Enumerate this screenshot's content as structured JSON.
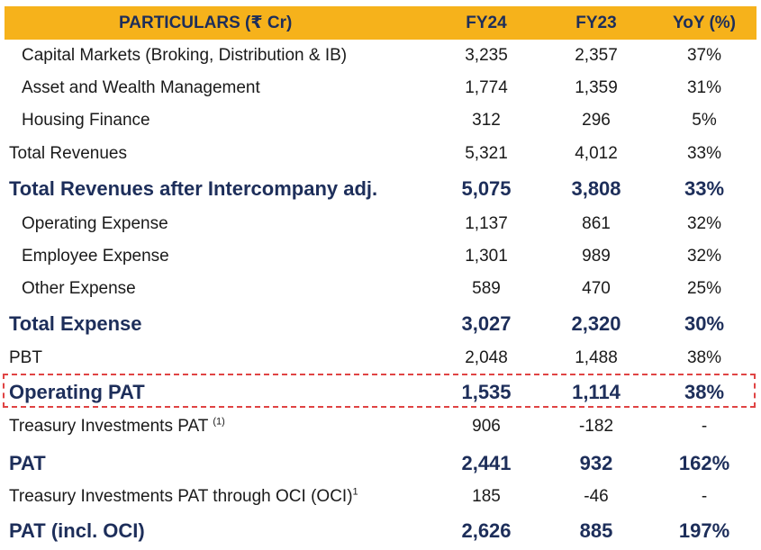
{
  "header": {
    "particulars": "PARTICULARS (₹ Cr)",
    "fy24": "FY24",
    "fy23": "FY23",
    "yoy": "YoY (%)"
  },
  "rows": [
    {
      "label": "Capital Markets (Broking, Distribution & IB)",
      "fy24": "3,235",
      "fy23": "2,357",
      "yoy": "37%"
    },
    {
      "label": "Asset and Wealth Management",
      "fy24": "1,774",
      "fy23": "1,359",
      "yoy": "31%"
    },
    {
      "label": "Housing Finance",
      "fy24": "312",
      "fy23": "296",
      "yoy": "5%"
    },
    {
      "label": "Total Revenues",
      "fy24": "5,321",
      "fy23": "4,012",
      "yoy": "33%"
    },
    {
      "label": "Total Revenues after Intercompany adj.",
      "fy24": "5,075",
      "fy23": "3,808",
      "yoy": "33%"
    },
    {
      "label": "Operating Expense",
      "fy24": "1,137",
      "fy23": "861",
      "yoy": "32%"
    },
    {
      "label": "Employee Expense",
      "fy24": "1,301",
      "fy23": "989",
      "yoy": "32%"
    },
    {
      "label": "Other Expense",
      "fy24": "589",
      "fy23": "470",
      "yoy": "25%"
    },
    {
      "label": "Total Expense",
      "fy24": "3,027",
      "fy23": "2,320",
      "yoy": "30%"
    },
    {
      "label": "PBT",
      "fy24": "2,048",
      "fy23": "1,488",
      "yoy": "38%"
    },
    {
      "label": "Operating PAT",
      "fy24": "1,535",
      "fy23": "1,114",
      "yoy": "38%"
    },
    {
      "label": "Treasury Investments PAT",
      "sup": "(1)",
      "fy24": "906",
      "fy23": "-182",
      "yoy": "-"
    },
    {
      "label": "PAT",
      "fy24": "2,441",
      "fy23": "932",
      "yoy": "162%"
    },
    {
      "label": "Treasury Investments PAT through OCI (OCI)",
      "sup": "1",
      "fy24": "185",
      "fy23": "-46",
      "yoy": "-"
    },
    {
      "label": "PAT (incl. OCI)",
      "fy24": "2,626",
      "fy23": "885",
      "yoy": "197%"
    }
  ],
  "colors": {
    "header_bg": "#f6b21b",
    "bold_text": "#1d2e5a",
    "highlight_border": "#e04444"
  }
}
